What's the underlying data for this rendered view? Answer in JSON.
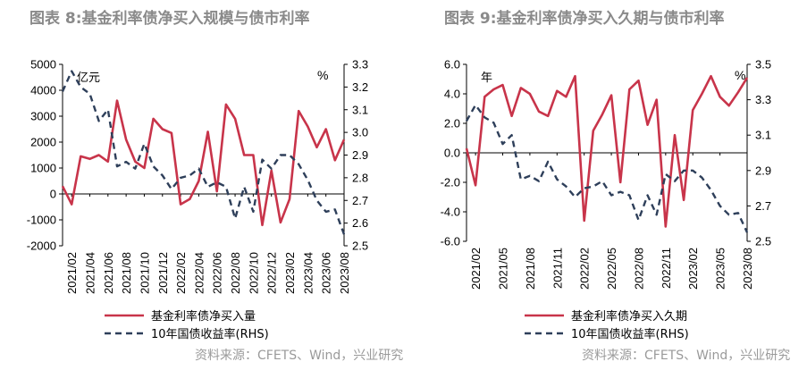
{
  "colors": {
    "series1": "#c8344a",
    "series2": "#2e3f5a",
    "title": "#8a8a8a",
    "source": "#9a9a9a"
  },
  "panels": [
    {
      "title": "图表 8:基金利率债净买入规模与债市利率",
      "source": "资料来源：CFETS、Wind，兴业研究"
    },
    {
      "title": "图表 9:基金利率债净买入久期与债市利率",
      "source": "资料来源：CFETS、Wind，兴业研究"
    }
  ],
  "chart_data": [
    {
      "type": "line",
      "title": "图表 8:基金利率债净买入规模与债市利率",
      "x": [
        "2021/01",
        "2021/02",
        "2021/03",
        "2021/04",
        "2021/05",
        "2021/06",
        "2021/07",
        "2021/08",
        "2021/09",
        "2021/10",
        "2021/11",
        "2021/12",
        "2022/01",
        "2022/02",
        "2022/03",
        "2022/04",
        "2022/05",
        "2022/06",
        "2022/07",
        "2022/08",
        "2022/09",
        "2022/10",
        "2022/11",
        "2022/12",
        "2023/01",
        "2023/02",
        "2023/03",
        "2023/04",
        "2023/05",
        "2023/06",
        "2023/07",
        "2023/08"
      ],
      "x_tick_labels": [
        "2021/02",
        "2021/04",
        "2021/06",
        "2021/08",
        "2021/10",
        "2021/12",
        "2022/02",
        "2022/04",
        "2022/06",
        "2022/08",
        "2022/10",
        "2022/12",
        "2023/02",
        "2023/04",
        "2023/06",
        "2023/08"
      ],
      "left_unit": "亿元",
      "right_unit": "%",
      "ylim_left": [
        -2000,
        5000
      ],
      "yticks_left": [
        "5000",
        "4000",
        "3000",
        "2000",
        "1000",
        "0",
        "-1000",
        "-2000"
      ],
      "ylim_right": [
        2.5,
        3.3
      ],
      "yticks_right": [
        "3.3",
        "3.2",
        "3.1",
        "3.0",
        "2.9",
        "2.8",
        "2.7",
        "2.6",
        "2.5"
      ],
      "series": [
        {
          "name": "基金利率债净买入量",
          "axis": "left",
          "style": "solid",
          "values": [
            300,
            -400,
            1450,
            1350,
            1500,
            1250,
            3600,
            2100,
            1250,
            1000,
            2900,
            2500,
            2350,
            -400,
            -200,
            500,
            2400,
            100,
            3450,
            2900,
            1500,
            1500,
            -1200,
            900,
            -1100,
            -200,
            3200,
            2600,
            1800,
            2500,
            1300,
            2100
          ]
        },
        {
          "name": "10年国债收益率(RHS)",
          "axis": "right",
          "style": "dashed",
          "values": [
            3.18,
            3.27,
            3.2,
            3.17,
            3.05,
            3.1,
            2.85,
            2.87,
            2.84,
            2.95,
            2.85,
            2.81,
            2.75,
            2.8,
            2.81,
            2.84,
            2.76,
            2.78,
            2.76,
            2.62,
            2.76,
            2.65,
            2.88,
            2.84,
            2.9,
            2.9,
            2.86,
            2.79,
            2.7,
            2.65,
            2.66,
            2.55
          ]
        }
      ]
    },
    {
      "type": "line",
      "title": "图表 9:基金利率债净买入久期与债市利率",
      "x": [
        "2021/01",
        "2021/02",
        "2021/03",
        "2021/04",
        "2021/05",
        "2021/06",
        "2021/07",
        "2021/08",
        "2021/09",
        "2021/10",
        "2021/11",
        "2021/12",
        "2022/01",
        "2022/02",
        "2022/03",
        "2022/04",
        "2022/05",
        "2022/06",
        "2022/07",
        "2022/08",
        "2022/09",
        "2022/10",
        "2022/11",
        "2022/12",
        "2023/01",
        "2023/02",
        "2023/03",
        "2023/04",
        "2023/05",
        "2023/06",
        "2023/07",
        "2023/08"
      ],
      "x_tick_labels": [
        "2021/02",
        "2021/05",
        "2021/08",
        "2021/11",
        "2022/02",
        "2022/05",
        "2022/08",
        "2022/11",
        "2023/02",
        "2023/05",
        "2023/08"
      ],
      "left_unit": "年",
      "right_unit": "%",
      "ylim_left": [
        -6,
        6
      ],
      "yticks_left": [
        "6.0",
        "4.0",
        "2.0",
        "0.0",
        "-2.0",
        "-4.0",
        "-6.0"
      ],
      "ylim_right": [
        2.5,
        3.5
      ],
      "yticks_right": [
        "3.5",
        "3.3",
        "3.1",
        "2.9",
        "2.7",
        "2.5"
      ],
      "series": [
        {
          "name": "基金利率债净买入久期",
          "axis": "left",
          "style": "solid",
          "values": [
            0.3,
            -2.2,
            3.8,
            4.3,
            4.6,
            2.5,
            4.4,
            4.0,
            2.8,
            2.5,
            4.2,
            3.8,
            5.2,
            -4.6,
            1.5,
            2.6,
            3.9,
            -2.0,
            4.3,
            4.9,
            1.9,
            3.6,
            -5.0,
            1.2,
            -3.2,
            2.9,
            4.0,
            5.2,
            3.8,
            3.2,
            4.1,
            5.1
          ]
        },
        {
          "name": "10年国债收益率(RHS)",
          "axis": "right",
          "style": "dashed",
          "values": [
            3.18,
            3.27,
            3.2,
            3.17,
            3.05,
            3.1,
            2.85,
            2.87,
            2.84,
            2.95,
            2.85,
            2.81,
            2.75,
            2.8,
            2.81,
            2.84,
            2.76,
            2.78,
            2.76,
            2.62,
            2.76,
            2.65,
            2.88,
            2.84,
            2.9,
            2.9,
            2.86,
            2.79,
            2.7,
            2.65,
            2.66,
            2.55
          ]
        }
      ]
    }
  ]
}
